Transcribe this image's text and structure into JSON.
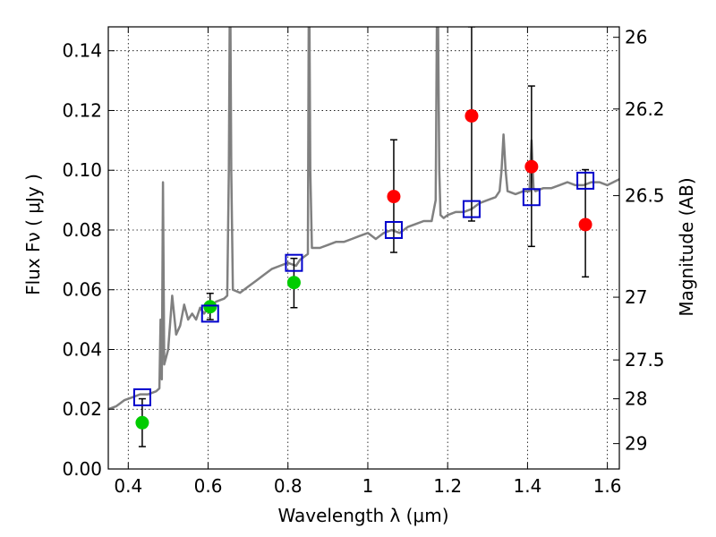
{
  "chart_data": {
    "type": "scatter",
    "xlabel": "Wavelength  λ (μm)",
    "ylabel": "Flux  Fν  ( μJy )",
    "y2label": "Magnitude (AB)",
    "xlim": [
      0.35,
      1.63
    ],
    "ylim": [
      0.0,
      0.148
    ],
    "grid": true,
    "x_ticks": [
      0.4,
      0.6,
      0.8,
      1.0,
      1.2,
      1.4,
      1.6
    ],
    "x_tick_labels": [
      "0.4",
      "0.6",
      "0.8",
      "1",
      "1.2",
      "1.4",
      "1.6"
    ],
    "y_ticks": [
      0.0,
      0.02,
      0.04,
      0.06,
      0.08,
      0.1,
      0.12,
      0.14
    ],
    "y_tick_labels": [
      "0.00",
      "0.02",
      "0.04",
      "0.06",
      "0.08",
      "0.10",
      "0.12",
      "0.14"
    ],
    "y2_ticks": [
      {
        "label": "26",
        "flux": 0.1445
      },
      {
        "label": "26.2",
        "flux": 0.1205
      },
      {
        "label": "26.5",
        "flux": 0.0915
      },
      {
        "label": "27",
        "flux": 0.0575
      },
      {
        "label": "27.5",
        "flux": 0.0365
      },
      {
        "label": "28",
        "flux": 0.0235
      },
      {
        "label": "29",
        "flux": 0.0085
      }
    ],
    "spectrum": {
      "color": "#808080",
      "x": [
        0.35,
        0.37,
        0.39,
        0.41,
        0.43,
        0.45,
        0.47,
        0.478,
        0.481,
        0.484,
        0.487,
        0.49,
        0.5,
        0.51,
        0.52,
        0.53,
        0.54,
        0.55,
        0.56,
        0.57,
        0.58,
        0.59,
        0.6,
        0.62,
        0.64,
        0.648,
        0.652,
        0.654,
        0.656,
        0.658,
        0.662,
        0.68,
        0.7,
        0.72,
        0.74,
        0.76,
        0.78,
        0.8,
        0.82,
        0.83,
        0.84,
        0.85,
        0.852,
        0.854,
        0.856,
        0.86,
        0.88,
        0.9,
        0.92,
        0.94,
        0.96,
        0.98,
        1.0,
        1.02,
        1.04,
        1.06,
        1.08,
        1.1,
        1.12,
        1.14,
        1.16,
        1.17,
        1.173,
        1.176,
        1.179,
        1.182,
        1.19,
        1.2,
        1.22,
        1.24,
        1.26,
        1.28,
        1.3,
        1.32,
        1.33,
        1.335,
        1.34,
        1.345,
        1.35,
        1.37,
        1.39,
        1.405,
        1.41,
        1.415,
        1.42,
        1.44,
        1.46,
        1.48,
        1.5,
        1.52,
        1.54,
        1.56,
        1.58,
        1.6,
        1.63
      ],
      "y": [
        0.02,
        0.021,
        0.023,
        0.024,
        0.025,
        0.025,
        0.026,
        0.027,
        0.05,
        0.03,
        0.096,
        0.035,
        0.04,
        0.058,
        0.045,
        0.048,
        0.055,
        0.05,
        0.052,
        0.05,
        0.054,
        0.052,
        0.054,
        0.056,
        0.057,
        0.058,
        0.1,
        0.148,
        0.148,
        0.1,
        0.06,
        0.059,
        0.061,
        0.063,
        0.065,
        0.067,
        0.068,
        0.069,
        0.068,
        0.07,
        0.071,
        0.072,
        0.148,
        0.148,
        0.1,
        0.074,
        0.074,
        0.075,
        0.076,
        0.076,
        0.077,
        0.078,
        0.079,
        0.077,
        0.079,
        0.08,
        0.079,
        0.081,
        0.082,
        0.083,
        0.083,
        0.09,
        0.148,
        0.148,
        0.1,
        0.085,
        0.084,
        0.085,
        0.086,
        0.086,
        0.087,
        0.089,
        0.09,
        0.091,
        0.093,
        0.1,
        0.112,
        0.1,
        0.093,
        0.092,
        0.093,
        0.093,
        0.11,
        0.094,
        0.093,
        0.094,
        0.094,
        0.095,
        0.096,
        0.095,
        0.095,
        0.096,
        0.096,
        0.095,
        0.097
      ]
    },
    "model_points": {
      "marker": "open-square",
      "color": "#0000cc",
      "x": [
        0.435,
        0.605,
        0.815,
        1.065,
        1.26,
        1.41,
        1.545
      ],
      "y": [
        0.024,
        0.052,
        0.069,
        0.08,
        0.087,
        0.091,
        0.0965
      ]
    },
    "observed_points": [
      {
        "x": 0.435,
        "y": 0.0155,
        "err_low": 0.0075,
        "err_high": 0.0235,
        "color": "#00cc00"
      },
      {
        "x": 0.605,
        "y": 0.0543,
        "err_low": 0.05,
        "err_high": 0.0588,
        "color": "#00cc00"
      },
      {
        "x": 0.815,
        "y": 0.0624,
        "err_low": 0.054,
        "err_high": 0.0705,
        "color": "#00cc00"
      },
      {
        "x": 1.065,
        "y": 0.0912,
        "err_low": 0.0725,
        "err_high": 0.1102,
        "color": "#ff0000"
      },
      {
        "x": 1.26,
        "y": 0.1182,
        "err_low": 0.083,
        "err_high": 0.148,
        "color": "#ff0000"
      },
      {
        "x": 1.41,
        "y": 0.1012,
        "err_low": 0.0745,
        "err_high": 0.1282,
        "color": "#ff0000"
      },
      {
        "x": 1.545,
        "y": 0.0818,
        "err_low": 0.0643,
        "err_high": 0.1002,
        "color": "#ff0000"
      }
    ]
  }
}
